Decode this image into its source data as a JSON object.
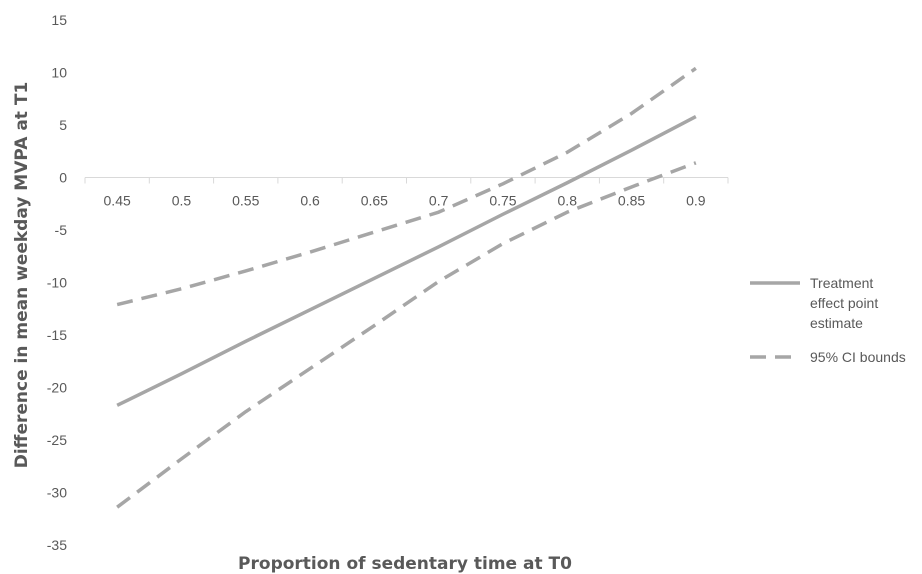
{
  "chart_data": {
    "type": "line",
    "xlabel": "Proportion of sedentary time at T0",
    "ylabel": "Difference in mean weekday MVPA at T1",
    "x_tick_labels": [
      "0.45",
      "0.5",
      "0.55",
      "0.6",
      "0.65",
      "0.7",
      "0.75",
      "0.8",
      "0.85",
      "0.9"
    ],
    "x": [
      0.45,
      0.5,
      0.55,
      0.6,
      0.65,
      0.7,
      0.75,
      0.8,
      0.85,
      0.9
    ],
    "y_tick_labels": [
      "15",
      "10",
      "5",
      "0",
      "-5",
      "-10",
      "-15",
      "-20",
      "-25",
      "-30",
      "-35"
    ],
    "y_ticks": [
      15,
      10,
      5,
      0,
      -5,
      -10,
      -15,
      -20,
      -25,
      -30,
      -35
    ],
    "ylim": [
      -35,
      15
    ],
    "grid": false,
    "legend_position": "right",
    "series": [
      {
        "name": "Treatment effect point estimate",
        "legend_lines": [
          "Treatment",
          "effect point",
          "estimate"
        ],
        "style": "solid",
        "color": "#a6a6a6",
        "values": [
          -21.7,
          -18.7,
          -15.6,
          -12.6,
          -9.6,
          -6.6,
          -3.5,
          -0.5,
          2.6,
          5.8
        ]
      },
      {
        "name": "95% CI bounds",
        "legend_lines": [
          "95% CI bounds"
        ],
        "style": "dashed",
        "color": "#a6a6a6",
        "bound": "upper",
        "values": [
          -12.1,
          -10.6,
          -8.9,
          -7.1,
          -5.2,
          -3.3,
          -0.6,
          2.4,
          6.1,
          10.4
        ]
      },
      {
        "name": "95% CI bounds",
        "style": "dashed",
        "color": "#a6a6a6",
        "bound": "lower",
        "values": [
          -31.4,
          -26.8,
          -22.3,
          -18.2,
          -14.1,
          -9.9,
          -6.3,
          -3.3,
          -0.9,
          1.4
        ]
      }
    ]
  }
}
